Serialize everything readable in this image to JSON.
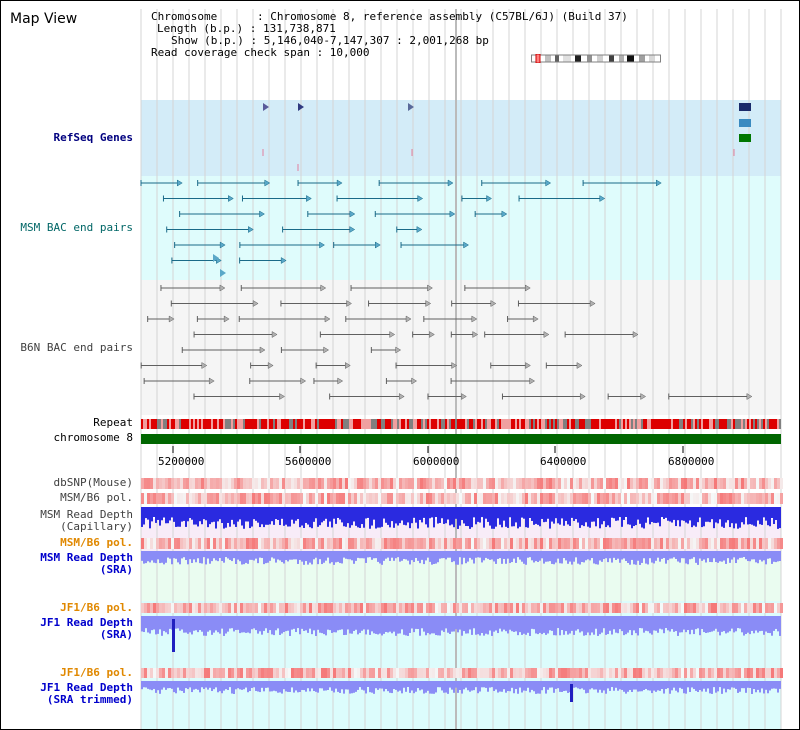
{
  "header": {
    "title": "Map View",
    "info_lines": [
      "Chromosome      : Chromosome 8, reference assembly (C57BL/6J) (Build 37)",
      "Length (b.p.) : 131,738,871",
      "Show (b.p.) : 5,146,040-7,147,307 : 2,001,268 bp",
      "Read coverage check span : 10,000"
    ]
  },
  "tracks": {
    "refseq": "RefSeq Genes",
    "msm_bac": "MSM BAC end pairs",
    "b6n_bac": "B6N BAC end pairs",
    "repeat": "Repeat",
    "chromosome": "chromosome 8",
    "dbsnp": "dbSNP(Mouse)",
    "msm_b6_pol": "MSM/B6 pol.",
    "msm_depth_cap_1": "MSM Read Depth",
    "msm_depth_cap_2": "(Capillary)",
    "msm_b6_pol_2": "MSM/B6 pol.",
    "msm_depth_sra_1": "MSM Read Depth",
    "msm_depth_sra_2": "(SRA)",
    "jf1_b6_pol": "JF1/B6 pol.",
    "jf1_depth_sra_1": "JF1 Read Depth",
    "jf1_depth_sra_2": "(SRA)",
    "jf1_b6_pol_2": "JF1/B6 pol.",
    "jf1_depth_trim_1": "JF1 Read Depth",
    "jf1_depth_trim_2": "(SRA trimmed)"
  },
  "axis": {
    "ticks": [
      "5200000",
      "5600000",
      "6000000",
      "6400000",
      "6800000"
    ]
  },
  "colors": {
    "refseq_bg": "#d3ecf8",
    "msm_bg": "#dffcfc",
    "b6n_bg": "#f5f5f5",
    "chromosome": "#006600",
    "depth_blue": "#2a2ae0",
    "depth_light": "#8a8cf6"
  }
}
